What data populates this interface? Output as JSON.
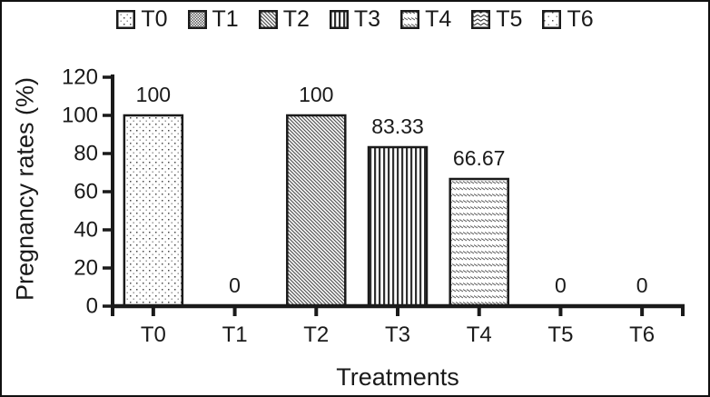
{
  "colors": {
    "ink": "#1a1a1a",
    "background": "#ffffff"
  },
  "chart_data": {
    "type": "bar",
    "title": "",
    "categories": [
      "T0",
      "T1",
      "T2",
      "T3",
      "T4",
      "T5",
      "T6"
    ],
    "values": [
      100,
      0,
      100,
      83.33,
      66.67,
      0,
      0
    ],
    "value_labels": [
      "100",
      "0",
      "100",
      "83.33",
      "66.67",
      "0",
      "0"
    ],
    "xlabel": "Treatments",
    "ylabel": "Pregnancy rates (%)",
    "ylim": [
      0,
      120
    ],
    "yticks": [
      0,
      20,
      40,
      60,
      80,
      100,
      120
    ],
    "grid": false,
    "legend": {
      "position": "top",
      "entries": [
        "T0",
        "T1",
        "T2",
        "T3",
        "T4",
        "T5",
        "T6"
      ]
    },
    "patterns": [
      "dots-light",
      "checker-dense",
      "diagonal-down",
      "vertical-lines",
      "dash-waves",
      "zigzag-dense",
      "dots-sparse"
    ]
  }
}
